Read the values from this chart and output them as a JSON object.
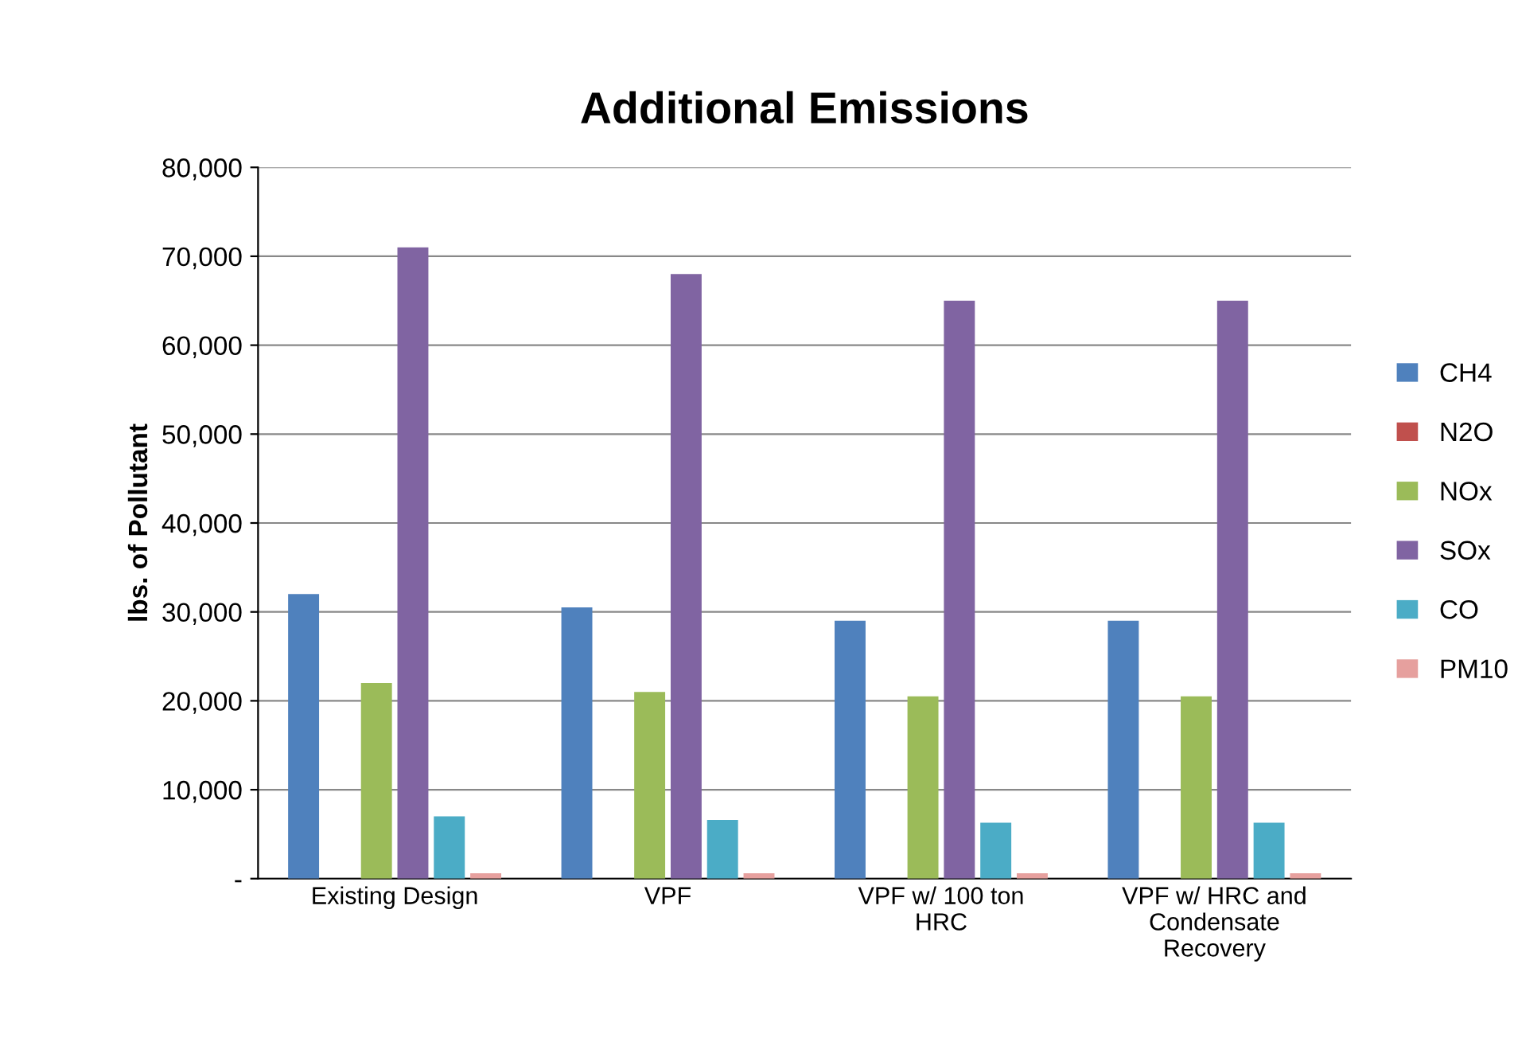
{
  "chart_data": {
    "type": "bar",
    "title": "Additional Emissions",
    "ylabel": "lbs. of Pollutant",
    "categories": [
      "Existing Design",
      "VPF",
      "VPF w/ 100 ton\nHRC",
      "VPF w/ HRC and\nCondensate\nRecovery"
    ],
    "series": [
      {
        "name": "CH4",
        "color": "#4f81bd",
        "values": [
          32000,
          30500,
          29000,
          29000
        ]
      },
      {
        "name": "N2O",
        "color": "#c0504d",
        "values": [
          null,
          null,
          null,
          null
        ]
      },
      {
        "name": "NOx",
        "color": "#9bbb59",
        "values": [
          22000,
          21000,
          20500,
          20500
        ]
      },
      {
        "name": "SOx",
        "color": "#8064a2",
        "values": [
          71000,
          68000,
          65000,
          65000
        ]
      },
      {
        "name": "CO",
        "color": "#4bacc6",
        "values": [
          7000,
          6600,
          6300,
          6300
        ]
      },
      {
        "name": "PM10",
        "color": "#e6a09e",
        "values": [
          600,
          600,
          600,
          600
        ]
      }
    ],
    "ylim": [
      0,
      80000
    ],
    "yticks": [
      {
        "value": 0,
        "label": "-"
      },
      {
        "value": 10000,
        "label": "10,000"
      },
      {
        "value": 20000,
        "label": "20,000"
      },
      {
        "value": 30000,
        "label": "30,000"
      },
      {
        "value": 40000,
        "label": "40,000"
      },
      {
        "value": 50000,
        "label": "50,000"
      },
      {
        "value": 60000,
        "label": "60,000"
      },
      {
        "value": 70000,
        "label": "70,000"
      },
      {
        "value": 80000,
        "label": "80,000"
      }
    ],
    "grid": "y",
    "legend": "right"
  }
}
